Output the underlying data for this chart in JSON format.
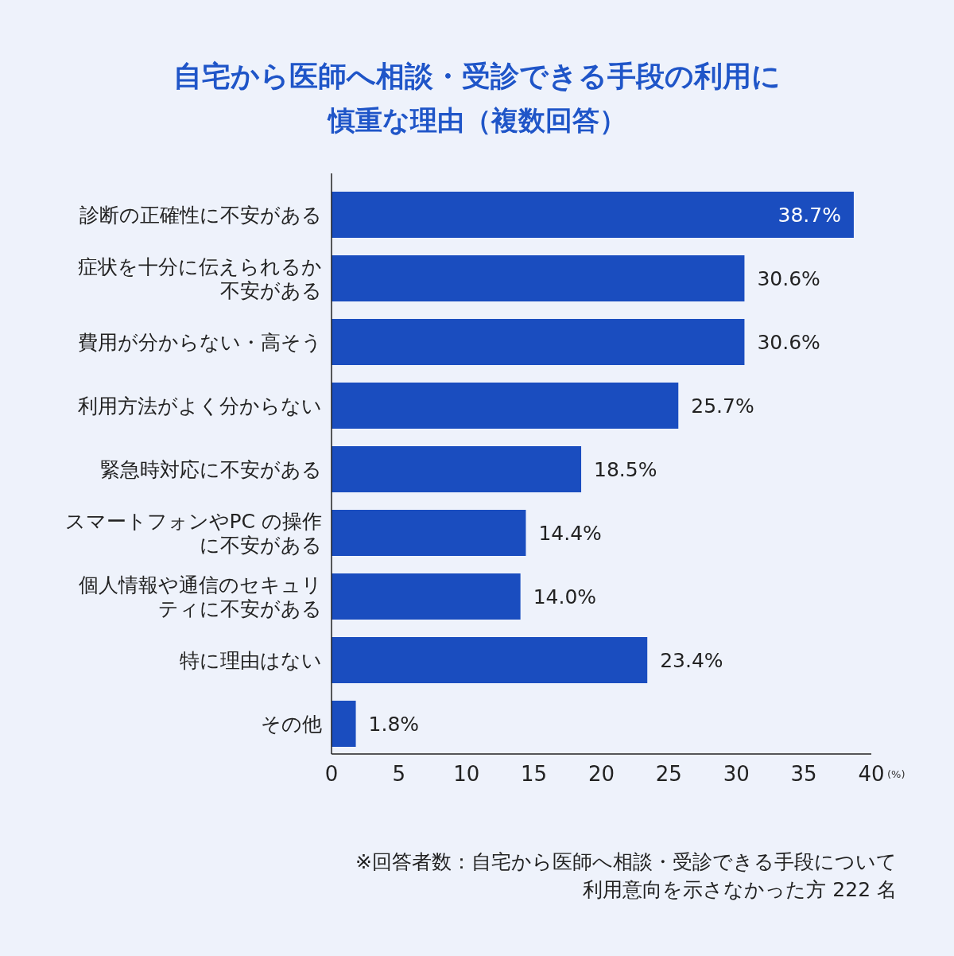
{
  "chart_data": {
    "type": "bar",
    "orientation": "horizontal",
    "title": "自宅から医師へ相談・受診できる手段の利用に",
    "subtitle": "慎重な理由（複数回答）",
    "categories": [
      "診断の正確性に不安がある",
      "症状を十分に伝えられるか不安がある",
      "費用が分からない・高そう",
      "利用方法がよく分からない",
      "緊急時対応に不安がある",
      "スマートフォンやPC の操作に不安がある",
      "個人情報や通信のセキュリティに不安がある",
      "特に理由はない",
      "その他"
    ],
    "values": [
      38.7,
      30.6,
      30.6,
      25.7,
      18.5,
      14.4,
      14.0,
      23.4,
      1.8
    ],
    "value_labels": [
      "38.7%",
      "30.6%",
      "30.6%",
      "25.7%",
      "18.5%",
      "14.4%",
      "14.0%",
      "23.4%",
      "1.8%"
    ],
    "color": "#1a4dbf",
    "xlim": [
      0,
      40
    ],
    "xticks": [
      0,
      5,
      10,
      15,
      20,
      25,
      30,
      35,
      40
    ],
    "xlabel": "(%)",
    "annotations": [
      "※回答者数：自宅から医師へ相談・受診できる手段について",
      "利用意向を示さなかった方 222 名"
    ]
  }
}
